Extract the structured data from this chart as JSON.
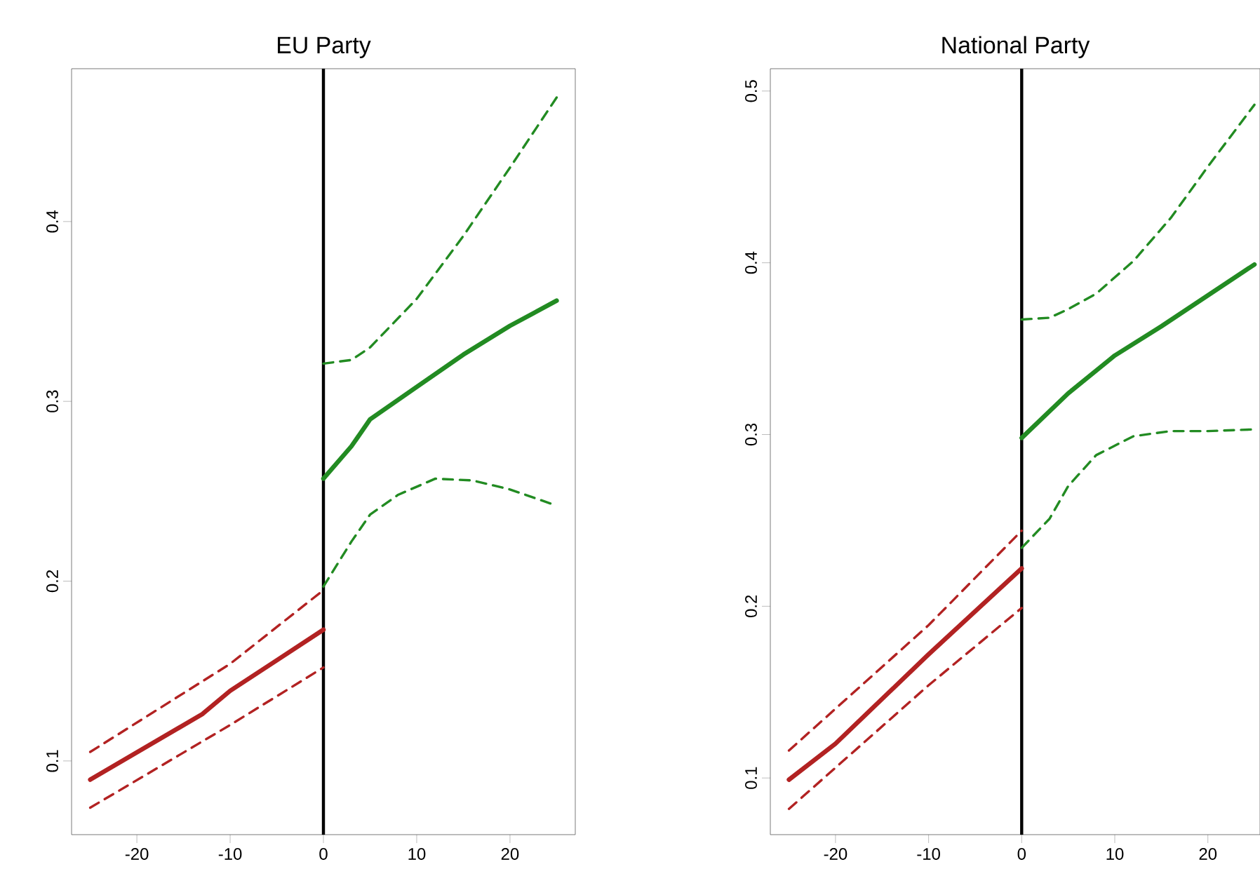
{
  "chart_data": [
    {
      "type": "line",
      "title": "EU Party",
      "xlim": [
        -27,
        27
      ],
      "ylim": [
        0.059,
        0.485
      ],
      "xticks": [
        -20,
        -10,
        0,
        10,
        20
      ],
      "yticks": [
        0.1,
        0.2,
        0.3,
        0.4
      ],
      "ref_lines": [
        {
          "axis": "x",
          "value": 0,
          "color": "#000000"
        }
      ],
      "series": [
        {
          "color": "#b22222",
          "line_style": "solid",
          "x": [
            -25,
            -13,
            -10,
            -5,
            0
          ],
          "values": [
            0.0896,
            0.126,
            0.139,
            0.156,
            0.173
          ]
        },
        {
          "color": "#b22222",
          "line_style": "dashed",
          "x": [
            -25,
            -10,
            0
          ],
          "values": [
            0.105,
            0.154,
            0.195
          ]
        },
        {
          "color": "#b22222",
          "line_style": "dashed",
          "x": [
            -25,
            -10,
            0
          ],
          "values": [
            0.074,
            0.12,
            0.152
          ]
        },
        {
          "color": "#228b22",
          "line_style": "solid",
          "x": [
            0,
            3,
            5,
            10,
            15,
            20,
            25
          ],
          "values": [
            0.257,
            0.275,
            0.29,
            0.308,
            0.326,
            0.342,
            0.356
          ]
        },
        {
          "color": "#228b22",
          "line_style": "dashed",
          "x": [
            0,
            3,
            5,
            10,
            15,
            20,
            25
          ],
          "values": [
            0.321,
            0.323,
            0.33,
            0.357,
            0.392,
            0.43,
            0.469
          ]
        },
        {
          "color": "#228b22",
          "line_style": "dashed",
          "x": [
            0,
            3,
            5,
            8,
            12,
            16,
            20,
            25
          ],
          "values": [
            0.197,
            0.222,
            0.237,
            0.248,
            0.257,
            0.256,
            0.251,
            0.242
          ]
        }
      ]
    },
    {
      "type": "line",
      "title": "National Party",
      "xlim": [
        -27,
        25.6
      ],
      "ylim": [
        0.067,
        0.513
      ],
      "xticks": [
        -20,
        -10,
        0,
        10,
        20
      ],
      "yticks": [
        0.1,
        0.2,
        0.3,
        0.4,
        0.5
      ],
      "ref_lines": [
        {
          "axis": "x",
          "value": 0,
          "color": "#000000"
        }
      ],
      "series": [
        {
          "color": "#b22222",
          "line_style": "solid",
          "x": [
            -25,
            -20,
            -10,
            -5,
            0
          ],
          "values": [
            0.099,
            0.12,
            0.172,
            0.197,
            0.222
          ]
        },
        {
          "color": "#b22222",
          "line_style": "dashed",
          "x": [
            -25,
            -10,
            0
          ],
          "values": [
            0.116,
            0.189,
            0.244
          ]
        },
        {
          "color": "#b22222",
          "line_style": "dashed",
          "x": [
            -25,
            -10,
            0
          ],
          "values": [
            0.082,
            0.154,
            0.199
          ]
        },
        {
          "color": "#228b22",
          "line_style": "solid",
          "x": [
            0,
            5,
            10,
            15,
            20,
            25
          ],
          "values": [
            0.298,
            0.324,
            0.346,
            0.363,
            0.381,
            0.399
          ]
        },
        {
          "color": "#228b22",
          "line_style": "dashed",
          "x": [
            0,
            3,
            5,
            8,
            12,
            16,
            20,
            25
          ],
          "values": [
            0.367,
            0.368,
            0.373,
            0.382,
            0.401,
            0.426,
            0.456,
            0.492
          ]
        },
        {
          "color": "#228b22",
          "line_style": "dashed",
          "x": [
            0,
            3,
            5,
            8,
            12,
            16,
            20,
            25
          ],
          "values": [
            0.234,
            0.251,
            0.27,
            0.288,
            0.299,
            0.302,
            0.302,
            0.303
          ]
        }
      ]
    }
  ]
}
